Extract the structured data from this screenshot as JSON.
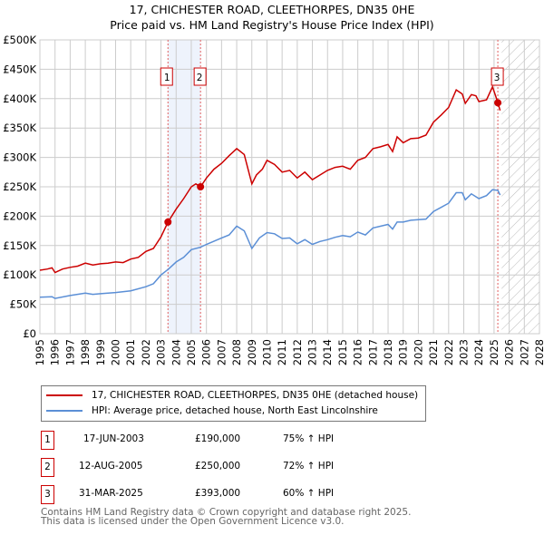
{
  "chart_data": {
    "type": "line",
    "title": "17, CHICHESTER ROAD, CLEETHORPES, DN35 0HE",
    "subtitle": "Price paid vs. HM Land Registry's House Price Index (HPI)",
    "xlim": [
      1995,
      2028
    ],
    "ylim": [
      0,
      500000
    ],
    "x_ticks": [
      "1995",
      "1996",
      "1997",
      "1998",
      "1999",
      "2000",
      "2001",
      "2002",
      "2003",
      "2004",
      "2005",
      "2006",
      "2007",
      "2008",
      "2009",
      "2010",
      "2011",
      "2012",
      "2013",
      "2014",
      "2015",
      "2016",
      "2017",
      "2018",
      "2019",
      "2020",
      "2021",
      "2022",
      "2023",
      "2024",
      "2025",
      "2026",
      "2027",
      "2028"
    ],
    "y_ticks": [
      {
        "v": 0,
        "l": "£0"
      },
      {
        "v": 50000,
        "l": "£50K"
      },
      {
        "v": 100000,
        "l": "£100K"
      },
      {
        "v": 150000,
        "l": "£150K"
      },
      {
        "v": 200000,
        "l": "£200K"
      },
      {
        "v": 250000,
        "l": "£250K"
      },
      {
        "v": 300000,
        "l": "£300K"
      },
      {
        "v": 350000,
        "l": "£350K"
      },
      {
        "v": 400000,
        "l": "£400K"
      },
      {
        "v": 450000,
        "l": "£450K"
      },
      {
        "v": 500000,
        "l": "£500K"
      }
    ],
    "grid": true,
    "shaded_range": [
      2003.46,
      2005.61
    ],
    "forecast_hatch_from": 2025.5,
    "series": [
      {
        "name": "17, CHICHESTER ROAD, CLEETHORPES, DN35 0HE (detached house)",
        "color": "#cc0000",
        "x": [
          1995,
          1995.5,
          1995.8,
          1996,
          1996.5,
          1997,
          1997.5,
          1998,
          1998.5,
          1999,
          1999.5,
          2000,
          2000.5,
          2001,
          2001.5,
          2002,
          2002.5,
          2003,
          2003.46,
          2004,
          2004.5,
          2005,
          2005.3,
          2005.61,
          2006,
          2006.5,
          2007,
          2007.5,
          2008,
          2008.5,
          2009,
          2009.3,
          2009.7,
          2010,
          2010.5,
          2011,
          2011.5,
          2012,
          2012.5,
          2013,
          2013.5,
          2014,
          2014.5,
          2015,
          2015.5,
          2016,
          2016.5,
          2017,
          2017.5,
          2018,
          2018.3,
          2018.6,
          2019,
          2019.5,
          2020,
          2020.5,
          2021,
          2021.5,
          2022,
          2022.5,
          2022.9,
          2023.1,
          2023.5,
          2023.8,
          2024,
          2024.5,
          2024.9,
          2025.1,
          2025.25,
          2025.4
        ],
        "y": [
          108000,
          110000,
          112000,
          104000,
          110000,
          113000,
          115000,
          120000,
          117000,
          119000,
          120000,
          122000,
          121000,
          127000,
          130000,
          140000,
          145000,
          165000,
          190000,
          212000,
          230000,
          250000,
          255000,
          250000,
          265000,
          280000,
          290000,
          303000,
          315000,
          305000,
          255000,
          270000,
          280000,
          295000,
          288000,
          275000,
          278000,
          265000,
          275000,
          262000,
          270000,
          278000,
          283000,
          285000,
          280000,
          295000,
          300000,
          315000,
          318000,
          322000,
          310000,
          335000,
          325000,
          332000,
          333000,
          338000,
          360000,
          372000,
          385000,
          415000,
          408000,
          392000,
          407000,
          405000,
          395000,
          398000,
          420000,
          405000,
          393000,
          380000
        ]
      },
      {
        "name": "HPI: Average price, detached house, North East Lincolnshire",
        "color": "#5b8fd6",
        "x": [
          1995,
          1995.8,
          1996,
          1997,
          1998,
          1998.5,
          1999,
          2000,
          2001,
          2002,
          2002.5,
          2003,
          2003.5,
          2004,
          2004.5,
          2005,
          2005.6,
          2006,
          2007,
          2007.5,
          2008,
          2008.5,
          2009,
          2009.5,
          2010,
          2010.5,
          2011,
          2011.5,
          2012,
          2012.5,
          2013,
          2013.5,
          2014,
          2014.5,
          2015,
          2015.5,
          2016,
          2016.5,
          2017,
          2018,
          2018.3,
          2018.6,
          2019,
          2019.5,
          2020,
          2020.5,
          2021,
          2021.5,
          2022,
          2022.5,
          2022.9,
          2023.1,
          2023.5,
          2024,
          2024.5,
          2024.9,
          2025.25,
          2025.4
        ],
        "y": [
          62000,
          63000,
          60000,
          65000,
          69000,
          67000,
          68000,
          70000,
          73000,
          80000,
          85000,
          100000,
          110000,
          122000,
          130000,
          143000,
          147000,
          152000,
          163000,
          168000,
          183000,
          175000,
          145000,
          163000,
          172000,
          170000,
          162000,
          163000,
          153000,
          160000,
          152000,
          157000,
          160000,
          164000,
          167000,
          165000,
          173000,
          168000,
          180000,
          186000,
          178000,
          190000,
          190000,
          193000,
          194000,
          195000,
          208000,
          215000,
          222000,
          240000,
          240000,
          228000,
          238000,
          230000,
          235000,
          245000,
          244000,
          236000
        ]
      }
    ],
    "sales": [
      {
        "id": "1",
        "x": 2003.46,
        "date": "17-JUN-2003",
        "price": "£190,000",
        "price_value": 190000,
        "hpi": "75% ↑ HPI"
      },
      {
        "id": "2",
        "x": 2005.61,
        "date": "12-AUG-2005",
        "price": "£250,000",
        "price_value": 250000,
        "hpi": "72% ↑ HPI"
      },
      {
        "id": "3",
        "x": 2025.25,
        "date": "31-MAR-2025",
        "price": "£393,000",
        "price_value": 393000,
        "hpi": "60% ↑ HPI"
      }
    ]
  },
  "footer": {
    "line1": "Contains HM Land Registry data © Crown copyright and database right 2025.",
    "line2": "This data is licensed under the Open Government Licence v3.0."
  }
}
